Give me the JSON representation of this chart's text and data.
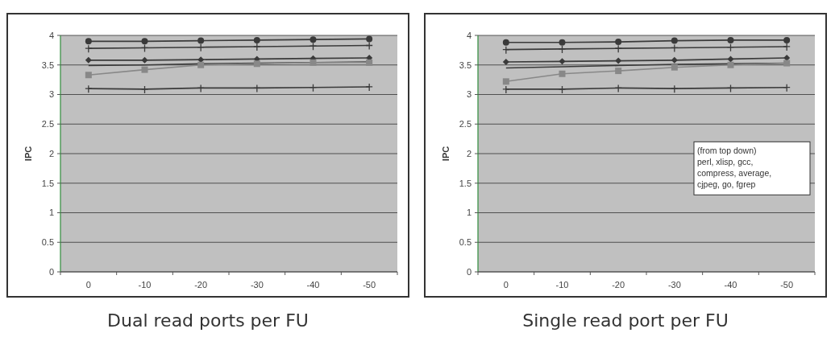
{
  "chart_data": [
    {
      "type": "line",
      "title": "Dual read ports per FU",
      "ylabel": "IPC",
      "categories": [
        "0",
        "-10",
        "-20",
        "-30",
        "-40",
        "-50"
      ],
      "ylim": [
        0,
        4
      ],
      "yticks": [
        0,
        0.5,
        1,
        1.5,
        2,
        2.5,
        3,
        3.5,
        4
      ],
      "grid": "y",
      "line_style": "solid",
      "series": [
        {
          "color": "#3a3a3a",
          "marker": "circle",
          "values": [
            3.9,
            3.9,
            3.91,
            3.92,
            3.93,
            3.94
          ]
        },
        {
          "color": "#3a3a3a",
          "marker": "cross",
          "values": [
            3.78,
            3.79,
            3.8,
            3.81,
            3.82,
            3.83
          ]
        },
        {
          "color": "#3a3a3a",
          "marker": "diamond",
          "values": [
            3.58,
            3.58,
            3.59,
            3.6,
            3.61,
            3.62
          ]
        },
        {
          "color": "#3a3a3a",
          "marker": "none",
          "values": [
            3.49,
            3.5,
            3.52,
            3.53,
            3.54,
            3.55
          ]
        },
        {
          "color": "#888888",
          "marker": "square",
          "values": [
            3.33,
            3.42,
            3.5,
            3.52,
            3.54,
            3.54
          ]
        },
        {
          "color": "#3a3a3a",
          "marker": "cross",
          "values": [
            3.1,
            3.09,
            3.11,
            3.11,
            3.12,
            3.13
          ]
        }
      ]
    },
    {
      "type": "line",
      "title": "Single read port per FU",
      "ylabel": "IPC",
      "categories": [
        "0",
        "-10",
        "-20",
        "-30",
        "-40",
        "-50"
      ],
      "ylim": [
        0,
        4
      ],
      "yticks": [
        0,
        0.5,
        1,
        1.5,
        2,
        2.5,
        3,
        3.5,
        4
      ],
      "grid": "y",
      "line_style": "solid",
      "annotations": [
        "(from top down)",
        "perl, xlisp, gcc,",
        "compress, average,",
        "cjpeg, go, fgrep"
      ],
      "series": [
        {
          "color": "#3a3a3a",
          "marker": "circle",
          "values": [
            3.88,
            3.88,
            3.89,
            3.91,
            3.92,
            3.92
          ]
        },
        {
          "color": "#3a3a3a",
          "marker": "cross",
          "values": [
            3.76,
            3.77,
            3.78,
            3.79,
            3.8,
            3.81
          ]
        },
        {
          "color": "#3a3a3a",
          "marker": "diamond",
          "values": [
            3.55,
            3.56,
            3.57,
            3.58,
            3.6,
            3.62
          ]
        },
        {
          "color": "#3a3a3a",
          "marker": "none",
          "values": [
            3.45,
            3.47,
            3.49,
            3.51,
            3.52,
            3.53
          ]
        },
        {
          "color": "#888888",
          "marker": "square",
          "values": [
            3.22,
            3.35,
            3.4,
            3.46,
            3.5,
            3.53
          ]
        },
        {
          "color": "#3a3a3a",
          "marker": "cross",
          "values": [
            3.09,
            3.09,
            3.11,
            3.1,
            3.11,
            3.12
          ]
        }
      ]
    }
  ]
}
